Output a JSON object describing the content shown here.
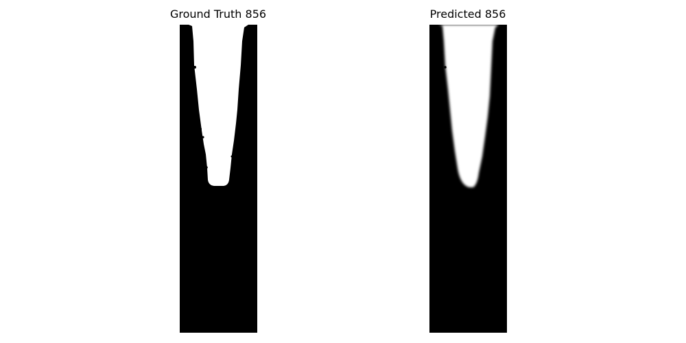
{
  "figure": {
    "panels": [
      {
        "title": "Ground Truth 856"
      },
      {
        "title": "Predicted 856"
      }
    ],
    "colors": {
      "background": "#ffffff",
      "mask_foreground": "#000000",
      "mask_empty": "#ffffff"
    }
  }
}
